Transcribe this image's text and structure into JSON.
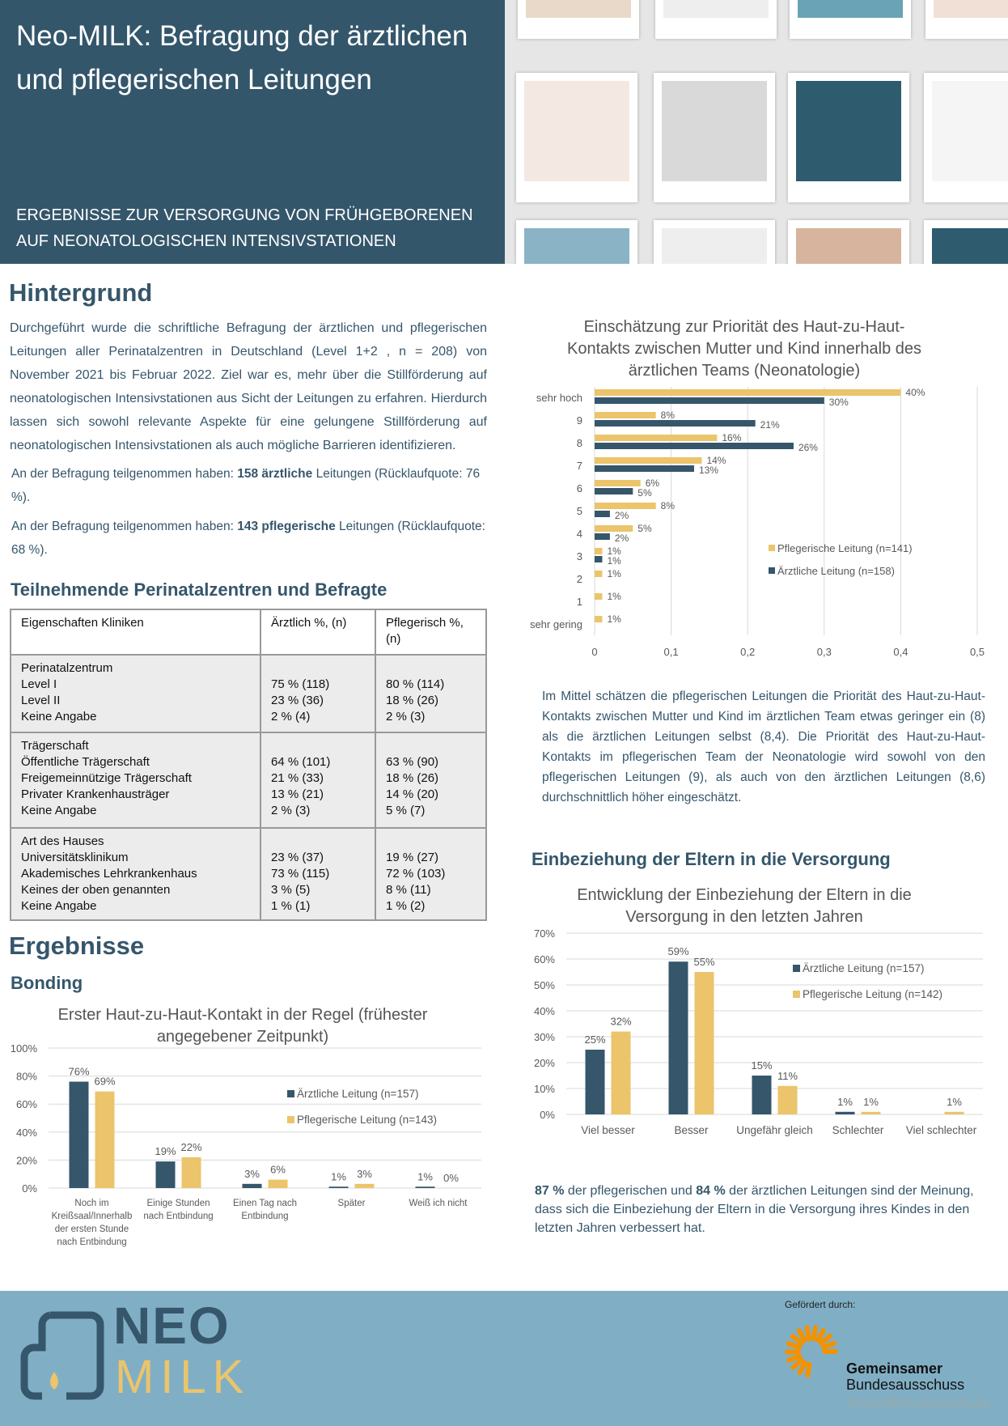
{
  "header": {
    "title": "Neo-MILK: Befragung der ärztlichen und pflegerischen Leitungen",
    "subtitle": "ERGEBNISSE ZUR VERSORGUNG VON FRÜHGEBORENEN AUF NEONATOLOGISCHEN INTENSIVSTATIONEN"
  },
  "hintergrund": {
    "heading": "Hintergrund",
    "body": "Durchgeführt wurde die schriftliche Befragung der ärztlichen und pflegerischen Leitungen aller Perinatalzentren in Deutschland (Level 1+2 , n = 208) von November 2021 bis Februar 2022. Ziel war es, mehr über die Stillförderung auf neonatologischen Intensivstationen aus Sicht der Leitungen zu erfahren. Hierdurch lassen sich sowohl relevante Aspekte für eine gelungene Stillförderung auf neonatologischen Intensivstationen als auch mögliche Barrieren identifizieren.",
    "line1_pre": "An der Befragung teilgenommen haben: ",
    "line1_bold": "158 ärztliche",
    "line1_post": " Leitungen (Rücklaufquote: 76 %).",
    "line2_pre": "An der Befragung teilgenommen haben: ",
    "line2_bold": "143 pflegerische",
    "line2_post": " Leitungen (Rücklaufquote: 68 %)."
  },
  "table": {
    "heading": "Teilnehmende Perinatalzentren und Befragte",
    "headers": [
      "Eigenschaften Kliniken",
      "Ärztlich %, (n)",
      "Pflegerisch %, (n)"
    ],
    "groups": [
      {
        "labels": "Perinatalzentrum\nLevel I\nLevel II\nKeine Angabe",
        "a": "\n75 % (118)\n23 % (36)\n2 % (4)",
        "p": "\n80 % (114)\n18 % (26)\n2 % (3)"
      },
      {
        "labels": "Trägerschaft\nÖffentliche Trägerschaft\nFreigemeinnützige Trägerschaft\nPrivater Krankenhausträger\nKeine Angabe",
        "a": "\n64 % (101)\n21 % (33)\n13 % (21)\n2 % (3)",
        "p": "\n63 % (90)\n18 % (26)\n14 % (20)\n5 % (7)"
      },
      {
        "labels": "Art des Hauses\nUniversitätsklinikum\nAkademisches Lehrkrankenhaus\nKeines der oben genannten\nKeine Angabe",
        "a": "\n23 % (37)\n73 % (115)\n3 % (5)\n1 % (1)",
        "p": "\n19 % (27)\n72 % (103)\n8 % (11)\n1 % (2)"
      }
    ]
  },
  "ergebnisse": {
    "heading": "Ergebnisse",
    "bonding": "Bonding"
  },
  "eltern": {
    "heading": "Einbeziehung der Eltern in die Versorgung",
    "summary_a": "87 %",
    "summary_b": " der pflegerischen und ",
    "summary_c": "84 %",
    "summary_d": " der ärztlichen Leitungen sind der Meinung, dass sich die Einbeziehung der Eltern in die Versorgung ihres Kindes in den letzten Jahren verbessert hat."
  },
  "priority_text": "Im Mittel schätzen die pflegerischen Leitungen die Priorität des Haut-zu-Haut-Kontakts zwischen Mutter und Kind im ärztlichen Team etwas geringer ein (8) als die ärztlichen Leitungen selbst (8,4). Die Priorität des Haut-zu-Haut-Kontakts im pflegerischen Team der Neonatologie wird sowohl von den pflegerischen Leitungen (9), als auch von den ärztlichen Leitungen (8,6) durchschnittlich höher eingeschätzt.",
  "colors": {
    "aerztlich": "#35566b",
    "pflegerisch": "#ebc46b",
    "header_bg": "#34566b",
    "footer_bg": "#80afc5"
  },
  "chart_data": [
    {
      "type": "bar",
      "orientation": "horizontal",
      "title": "Einschätzung zur Priorität des Haut-zu-Haut-Kontakts zwischen Mutter und Kind innerhalb des ärztlichen Teams (Neonatologie)",
      "categories": [
        "sehr hoch",
        "9",
        "8",
        "7",
        "6",
        "5",
        "4",
        "3",
        "2",
        "1",
        "sehr gering"
      ],
      "series": [
        {
          "name": "Pflegerische Leitung (n=141)",
          "values": [
            0.4,
            0.08,
            0.16,
            0.14,
            0.06,
            0.08,
            0.05,
            0.01,
            0.01,
            0.01,
            0.01
          ],
          "labels": [
            "40%",
            "8%",
            "16%",
            "14%",
            "6%",
            "8%",
            "5%",
            "1%",
            "1%",
            "1%",
            "1%"
          ]
        },
        {
          "name": "Ärztliche Leitung (n=158)",
          "values": [
            0.3,
            0.21,
            0.26,
            0.13,
            0.05,
            0.02,
            0.02,
            0.01,
            0,
            0,
            0
          ],
          "labels": [
            "30%",
            "21%",
            "26%",
            "13%",
            "5%",
            "2%",
            "2%",
            "1%",
            "",
            "",
            ""
          ]
        }
      ],
      "xlim": [
        0,
        0.5
      ],
      "ticks": [
        "0",
        "0,1",
        "0,2",
        "0,3",
        "0,4",
        "0,5"
      ],
      "grid": true,
      "legend": "right"
    },
    {
      "type": "bar",
      "title": "Erster Haut-zu-Haut-Kontakt in der Regel (frühester angegebener Zeitpunkt)",
      "categories": [
        "Noch im Kreißsaal/Innerhalb der ersten Stunde nach Entbindung",
        "Einige Stunden nach Entbindung",
        "Einen Tag nach Entbindung",
        "Später",
        "Weiß ich nicht"
      ],
      "series": [
        {
          "name": "Ärztliche Leitung (n=157)",
          "values": [
            76,
            19,
            3,
            1,
            1
          ],
          "labels": [
            "76%",
            "19%",
            "3%",
            "1%",
            "1%"
          ]
        },
        {
          "name": "Pflegerische Leitung (n=143)",
          "values": [
            69,
            22,
            6,
            3,
            0
          ],
          "labels": [
            "69%",
            "22%",
            "6%",
            "3%",
            "0%"
          ]
        }
      ],
      "ylim": [
        0,
        100
      ],
      "ticks": [
        "0%",
        "20%",
        "40%",
        "60%",
        "80%",
        "100%"
      ],
      "grid": true,
      "legend": "right"
    },
    {
      "type": "bar",
      "title": "Entwicklung der Einbeziehung der Eltern in die Versorgung in den letzten Jahren",
      "categories": [
        "Viel besser",
        "Besser",
        "Ungefähr gleich",
        "Schlechter",
        "Viel schlechter"
      ],
      "series": [
        {
          "name": "Ärztliche Leitung (n=157)",
          "values": [
            25,
            59,
            15,
            1,
            0
          ],
          "labels": [
            "25%",
            "59%",
            "15%",
            "1%",
            ""
          ]
        },
        {
          "name": "Pflegerische Leitung (n=142)",
          "values": [
            32,
            55,
            11,
            1,
            1
          ],
          "labels": [
            "32%",
            "55%",
            "11%",
            "1%",
            "1%"
          ]
        }
      ],
      "ylim": [
        0,
        70
      ],
      "ticks": [
        "0%",
        "10%",
        "20%",
        "30%",
        "40%",
        "50%",
        "60%",
        "70%"
      ],
      "grid": true,
      "legend": "right"
    }
  ],
  "footer": {
    "logo_neo": "NEO",
    "logo_milk": "MILK",
    "funded_by": "Gefördert durch:",
    "gba1": "Gemeinsamer",
    "gba2": "Bundesausschuss",
    "gba3": "Innovationsausschuss"
  }
}
